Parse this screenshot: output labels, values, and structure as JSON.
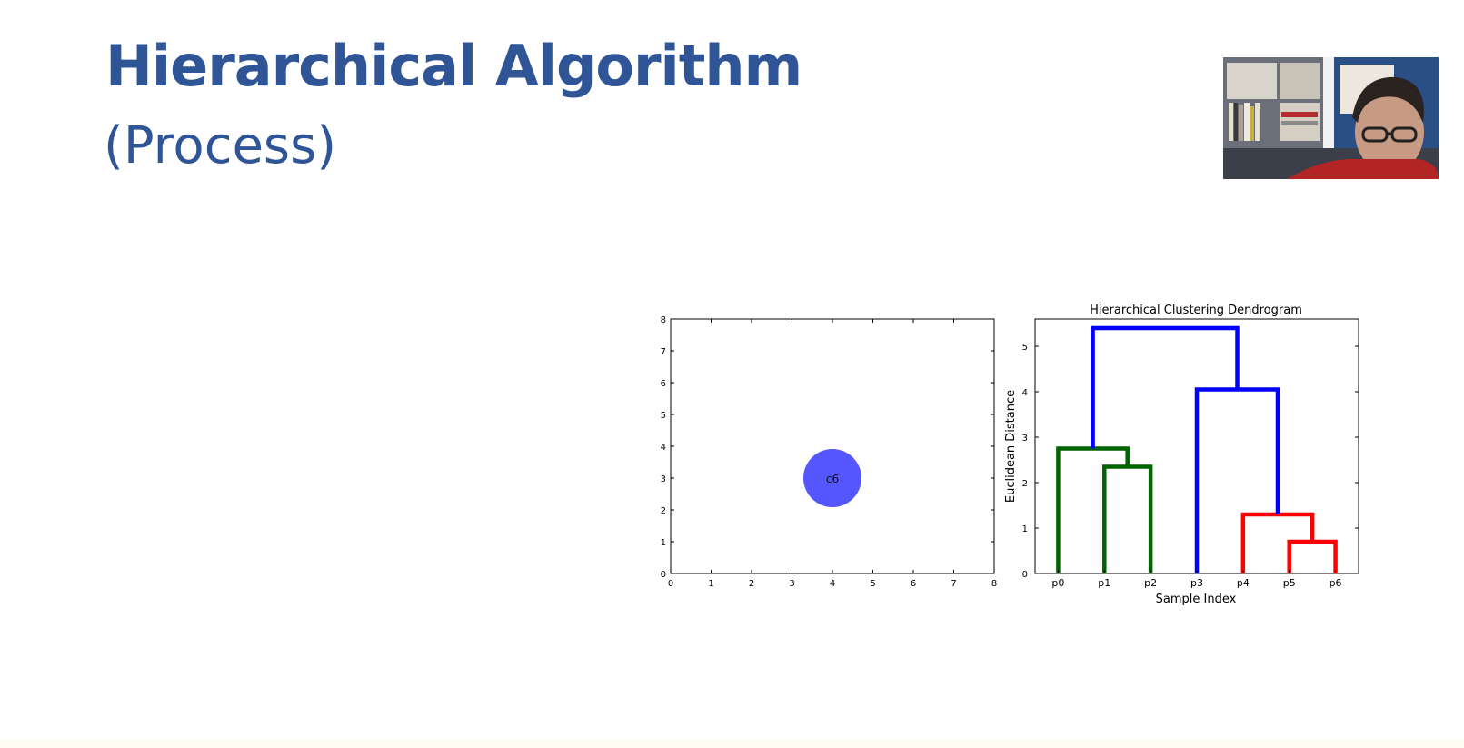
{
  "slide": {
    "title": "Hierarchical Algorithm",
    "subtitle": "(Process)"
  },
  "webcam": {
    "icon": "presenter-video-feed"
  },
  "chart_data": [
    {
      "type": "scatter",
      "title": "",
      "xlabel": "",
      "ylabel": "",
      "xlim": [
        0,
        8
      ],
      "ylim": [
        0,
        8
      ],
      "xticks": [
        0,
        1,
        2,
        3,
        4,
        5,
        6,
        7,
        8
      ],
      "yticks": [
        0,
        1,
        2,
        3,
        4,
        5,
        6,
        7,
        8
      ],
      "grid": false,
      "points": [
        {
          "label": "c6",
          "x": 4.0,
          "y": 3.0,
          "color": "#4d4dff"
        }
      ]
    },
    {
      "type": "dendrogram",
      "title": "Hierarchical Clustering Dendrogram",
      "xlabel": "Sample Index",
      "ylabel": "Euclidean Distance",
      "ylim": [
        0,
        5.6
      ],
      "yticks": [
        0,
        1,
        2,
        3,
        4,
        5
      ],
      "leaves": [
        "p0",
        "p1",
        "p2",
        "p3",
        "p4",
        "p5",
        "p6"
      ],
      "colors": {
        "green": "#006400",
        "red": "#ff0000",
        "blue": "#0000ff"
      },
      "links": [
        {
          "left": "p1",
          "right": "p2",
          "height": 2.35,
          "color": "green"
        },
        {
          "left": "p0",
          "right": "(p1,p2)",
          "height": 2.75,
          "color": "green"
        },
        {
          "left": "p5",
          "right": "p6",
          "height": 0.7,
          "color": "red"
        },
        {
          "left": "p4",
          "right": "(p5,p6)",
          "height": 1.3,
          "color": "red"
        },
        {
          "left": "p3",
          "right": "(p4,p5,p6)",
          "height": 4.05,
          "color": "blue"
        },
        {
          "left": "(p0,p1,p2)",
          "right": "(p3,p4,p5,p6)",
          "height": 5.4,
          "color": "blue"
        }
      ]
    }
  ]
}
